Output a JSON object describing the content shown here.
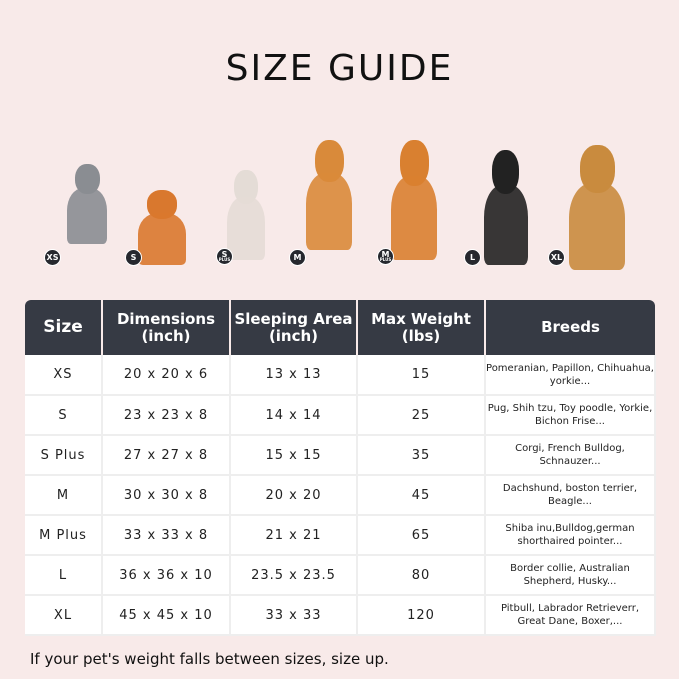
{
  "title": "SIZE GUIDE",
  "pets": [
    {
      "badge": "XS",
      "plus": "",
      "animal": "cat",
      "color": "#8a8d92"
    },
    {
      "badge": "S",
      "plus": "",
      "animal": "pomeranian",
      "color": "#d9782e"
    },
    {
      "badge": "S",
      "plus": "PLUS",
      "animal": "french-bulldog",
      "color": "#e4dcd6"
    },
    {
      "badge": "M",
      "plus": "",
      "animal": "corgi",
      "color": "#d98a3a"
    },
    {
      "badge": "M",
      "plus": "PLUS",
      "animal": "shiba-inu",
      "color": "#d98030"
    },
    {
      "badge": "L",
      "plus": "",
      "animal": "border-collie",
      "color": "#222"
    },
    {
      "badge": "XL",
      "plus": "",
      "animal": "golden-retriever",
      "color": "#c98b3e"
    }
  ],
  "table": {
    "headers": [
      "Size",
      "Dimensions\n(inch)",
      "Sleeping Area\n(inch)",
      "Max Weight\n(lbs)",
      "Breeds"
    ],
    "rows": [
      [
        "XS",
        "20 x 20 x 6",
        "13 x 13",
        "15",
        "Pomeranian, Papillon, Chihuahua, yorkie..."
      ],
      [
        "S",
        "23 x 23 x 8",
        "14 x 14",
        "25",
        "Pug, Shih tzu, Toy poodle, Yorkie, Bichon Frise..."
      ],
      [
        "S Plus",
        "27 x 27 x 8",
        "15 x 15",
        "35",
        "Corgi, French Bulldog, Schnauzer..."
      ],
      [
        "M",
        "30 x 30 x 8",
        "20 x 20",
        "45",
        "Dachshund, boston terrier, Beagle..."
      ],
      [
        "M Plus",
        "33 x 33 x 8",
        "21 x 21",
        "65",
        "Shiba inu,Bulldog,german shorthaired pointer..."
      ],
      [
        "L",
        "36 x 36 x 10",
        "23.5 x 23.5",
        "80",
        "Border collie, Australian Shepherd, Husky..."
      ],
      [
        "XL",
        "45 x 45 x 10",
        "33 x 33",
        "120",
        "Pitbull, Labrador Retrieverr, Great Dane, Boxer,..."
      ]
    ]
  },
  "footer": "If your pet's weight falls between sizes, size up.",
  "colors": {
    "background": "#f8eae9",
    "header": "#363a44"
  }
}
